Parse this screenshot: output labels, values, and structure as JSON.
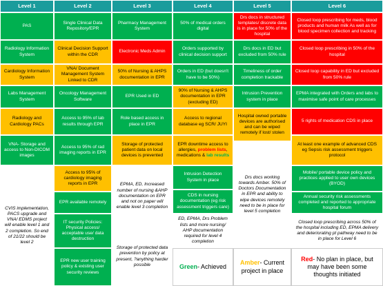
{
  "columns": [
    {
      "header": "Level 1",
      "cells": [
        {
          "text": "PAS",
          "color": "#00b050"
        },
        {
          "text": "Radiology Information System",
          "color": "#00b050"
        },
        {
          "text": "Cardiology Information System",
          "color": "#ffc000"
        },
        {
          "text": "Labs Management System",
          "color": "#00b050"
        },
        {
          "text": "Radiology and Cardiology PACs",
          "color": "#ffc000"
        },
        {
          "text": "VNA- Storage and access to Non-DICOM images",
          "color": "#00b050"
        },
        {
          "text": "CVIS implementation, PACS upgrade and VNA/ EDMS project will enable level 1 and 2 completion. So end of 21/22 should be level 2",
          "color": "#ffffff",
          "italic": true
        }
      ]
    },
    {
      "header": "Level 2",
      "cells": [
        {
          "text": "Single Clinical Data Repository/EPR",
          "color": "#00b050"
        },
        {
          "text": "Clinical Decision Support within the CDR",
          "color": "#ffc000"
        },
        {
          "text": "VNA/ Document Management System Linked to CDR",
          "color": "#ffc000"
        },
        {
          "text": "Oncology Management Software",
          "color": "#00b050"
        },
        {
          "text": "Access to 95% of lab results through EPR",
          "color": "#00b050"
        },
        {
          "text": "Access to 95% of rad imaging reports in EPR",
          "color": "#00b050"
        },
        {
          "text": "Access to 95% of cardiology imaging reports in EPR",
          "color": "#ffc000"
        },
        {
          "text": "EPR available remotely",
          "color": "#00b050"
        },
        {
          "text": "IT security Policies: Physical access/ acceptable use/ data destruction",
          "color": "#00b050"
        },
        {
          "text": "EPR new user training policy & existing user security reviews",
          "color": "#00b050"
        }
      ]
    },
    {
      "header": "Level 3",
      "cells": [
        {
          "text": "Pharmacy Management System",
          "color": "#00b050"
        },
        {
          "text": "Electronic Meds Admin",
          "color": "#ff0000"
        },
        {
          "text": "50% of Nursing & AHPS documentation in EPR",
          "color": "#ffc000"
        },
        {
          "text": "EPR Used in ED",
          "color": "#00b050"
        },
        {
          "text": "Role based access in place in EPR",
          "color": "#00b050"
        },
        {
          "text": "Storage of protected patient data on local devices is prevented",
          "color": "#ffc000"
        },
        {
          "text": "EPMA, ED, Increased number of nursing &AHP documentation on EPR and not on paper will enable level 3 completion",
          "color": "#ffffff",
          "italic": true
        },
        {
          "text": "Storage of protected data prevention by policy at present, ?anything harder possible",
          "color": "#ffffff",
          "italic": true
        }
      ]
    },
    {
      "header": "Level 4",
      "cells": [
        {
          "text": "50% of medical orders digital",
          "color": "#00b050"
        },
        {
          "text": "Orders supported by clinical decision support",
          "color": "#00b050"
        },
        {
          "text": "Orders in ED (but doesn't have to be 50%)",
          "color": "#00b050"
        },
        {
          "text": "90% of Nursing & AHPS documentation in EPR (excluding ED)",
          "color": "#ffc000"
        },
        {
          "text": "Access to regional database eg SCR/ JUYI",
          "color": "#ffc000"
        },
        {
          "parts": [
            {
              "text": "EPR downtime access to allergies, "
            },
            {
              "text": "problem lists",
              "color": "#ff0000"
            },
            {
              "text": ", medications & "
            },
            {
              "text": "lab results",
              "color": "#00b050"
            }
          ],
          "color": "#ffc000"
        },
        {
          "text": "Intrusion Detection System in place",
          "color": "#00b050"
        },
        {
          "text": "CDS in nursing documentation (eg risk assessment triggers care)",
          "color": "#00b050"
        },
        {
          "text": "ED, EPMA, Drs Problem lists and more nursing/ AHP documentation required for level 4 completion",
          "color": "#ffffff",
          "italic": true
        },
        {
          "parts": [
            {
              "text": "Green",
              "color": "#00b050"
            },
            {
              "text": "- Achieved"
            }
          ],
          "color": "#ffffff",
          "legend": true
        }
      ]
    },
    {
      "header": "Level 5",
      "cells": [
        {
          "text": "Drs docs in structured templates/ discrete data is in place for 50% of the hospital",
          "color": "#ff0000"
        },
        {
          "text": "Drs docs in ED but excluded from 50% rule",
          "color": "#00b050"
        },
        {
          "text": "Timeliness of order completion trackable",
          "color": "#00b050"
        },
        {
          "text": "Intrusion Prevention system in place",
          "color": "#00b050"
        },
        {
          "text": "Hospital owned portable devices are authorised and can be wiped remotely if lost/ stolen",
          "color": "#ffc000"
        },
        {
          "text": "Drs docs working towards Amber. 50% of Doctors Documentation in EPR and ability to wipe devices remotely need to be in place for level 5 completion",
          "color": "#ffffff",
          "italic": true
        },
        {
          "parts": [
            {
              "text": "Amber",
              "color": "#ffc000"
            },
            {
              "text": "- Current project in place"
            }
          ],
          "color": "#ffffff",
          "legend": true
        }
      ]
    },
    {
      "header": "Level 6",
      "cells": [
        {
          "text": "Closed loop prescribing for meds, blood products and human milk As well as for blood specimen collection and tracking",
          "color": "#ff0000"
        },
        {
          "text": "Closed loop prescribing in 50% of the hospital",
          "color": "#ff0000"
        },
        {
          "text": "Closed loop capability in ED but excluded from 50% rule",
          "color": "#ff0000"
        },
        {
          "text": "EPMA integrated with Orders and labs to maximise safe point of care processes",
          "color": "#00b050"
        },
        {
          "text": "5 rights of medication CDS in place",
          "color": "#ff0000"
        },
        {
          "text": "At least one example of advanced CDS eg Sepsis risk assessment triggers protocol",
          "color": "#ffc000"
        },
        {
          "text": "Mobile/ portable device policy and practices applied to user own devices (BYOD)",
          "color": "#00b050"
        },
        {
          "text": "Annual security risk assessments completed and reported to appropriate hospital forum",
          "color": "#00b050"
        },
        {
          "text": "Closed loop prescribing across 50% of the hospital including ED, EPMA delivery and deteriorating pt pathway need to be in place for Level 6",
          "color": "#ffffff",
          "italic": true
        },
        {
          "parts": [
            {
              "text": "Red",
              "color": "#ff0000"
            },
            {
              "text": "- No plan in place, but may have been some thoughts initiated"
            }
          ],
          "color": "#ffffff",
          "legend": true
        }
      ]
    }
  ]
}
